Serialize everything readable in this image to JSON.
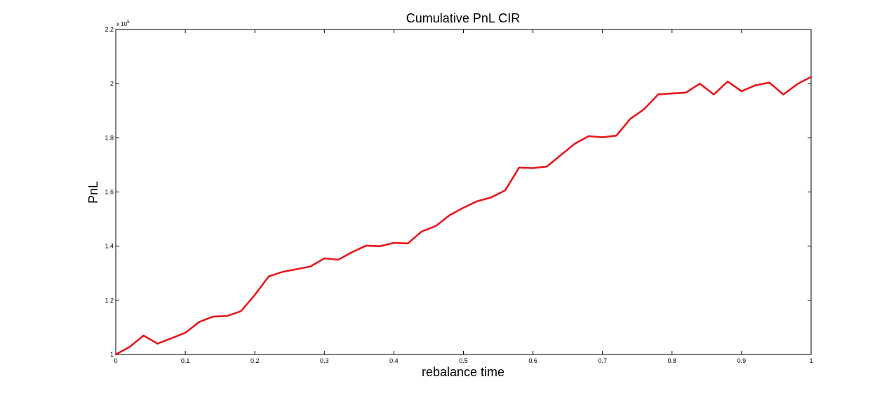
{
  "chart_data": {
    "type": "line",
    "title": "Cumulative PnL CIR",
    "xlabel": "rebalance time",
    "ylabel": "PnL",
    "xlim": [
      0,
      1
    ],
    "ylim": [
      100000,
      220000
    ],
    "y_exponent_label": "x 10",
    "y_exponent_power": "5",
    "x_ticks": [
      0,
      0.1,
      0.2,
      0.3,
      0.4,
      0.5,
      0.6,
      0.7,
      0.8,
      0.9,
      1
    ],
    "x_tick_labels": [
      "0",
      "0.1",
      "0.2",
      "0.3",
      "0.4",
      "0.5",
      "0.6",
      "0.7",
      "0.8",
      "0.9",
      "1"
    ],
    "y_ticks": [
      100000,
      120000,
      140000,
      160000,
      180000,
      200000,
      220000
    ],
    "y_tick_labels": [
      "1",
      "1.2",
      "1.4",
      "1.6",
      "1.8",
      "2",
      "2.2"
    ],
    "grid": false,
    "line_color": "#e8181b",
    "series": [
      {
        "x": [
          0,
          0.02,
          0.04,
          0.06,
          0.08,
          0.1,
          0.12,
          0.14,
          0.16,
          0.18,
          0.2,
          0.22,
          0.24,
          0.26,
          0.28,
          0.3,
          0.32,
          0.34,
          0.36,
          0.38,
          0.4,
          0.42,
          0.44,
          0.46,
          0.48,
          0.5,
          0.52,
          0.54,
          0.56,
          0.58,
          0.6,
          0.62,
          0.64,
          0.66,
          0.68,
          0.7,
          0.72,
          0.74,
          0.76,
          0.78,
          0.8,
          0.82,
          0.84,
          0.86,
          0.88,
          0.9,
          0.92,
          0.94,
          0.96,
          0.98,
          1.0
        ],
        "y": [
          100000,
          102800,
          107000,
          104000,
          106000,
          108000,
          112000,
          114000,
          114200,
          116000,
          122000,
          128800,
          130500,
          131500,
          132500,
          135500,
          135000,
          137800,
          140200,
          140000,
          141200,
          141000,
          145400,
          147400,
          151400,
          154200,
          156600,
          158000,
          160600,
          169000,
          168800,
          169400,
          173600,
          177800,
          180600,
          180200,
          180800,
          187000,
          190600,
          196000,
          196400,
          196700,
          200000,
          196000,
          200800,
          197200,
          199400,
          200400,
          196000,
          199800,
          202500
        ]
      }
    ]
  }
}
